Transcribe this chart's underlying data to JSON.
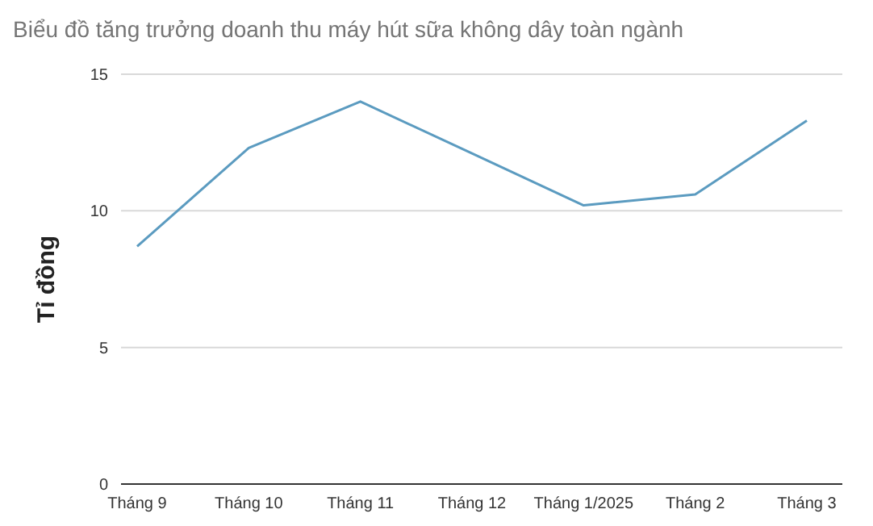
{
  "chart_data": {
    "type": "line",
    "title": "Biểu đồ tăng trưởng doanh thu máy hút sữa không dây toàn ngành",
    "ylabel": "Tỉ đồng",
    "categories": [
      "Tháng 9",
      "Tháng 10",
      "Tháng 11",
      "Tháng 12",
      "Tháng 1/2025",
      "Tháng 2",
      "Tháng 3"
    ],
    "series": [
      {
        "color": "#5b9bc0",
        "values": [
          8.7,
          12.3,
          14.0,
          12.1,
          10.2,
          10.6,
          13.3
        ]
      }
    ],
    "ylim": [
      0,
      15
    ],
    "yticks": [
      0,
      5,
      10,
      15
    ],
    "grid": "y",
    "legend": false,
    "marker": "none",
    "line_style": "solid"
  }
}
